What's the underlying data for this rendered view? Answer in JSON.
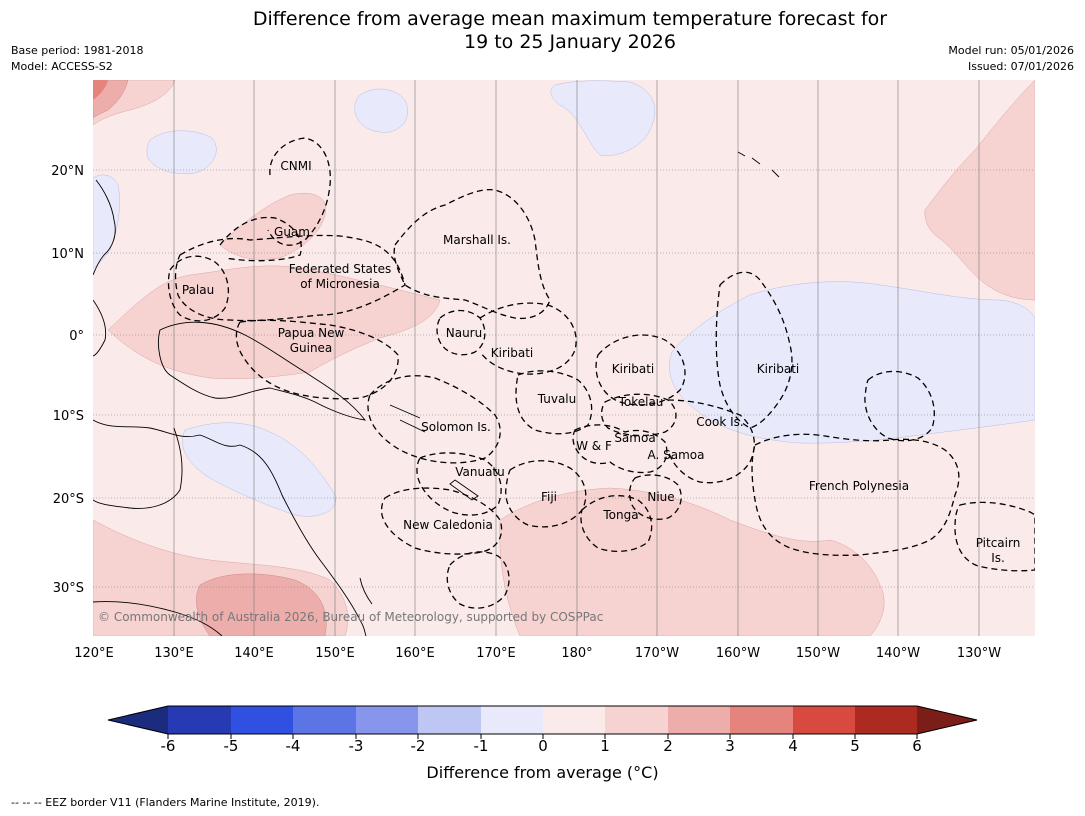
{
  "title": {
    "line1": "Difference from average mean maximum temperature forecast for",
    "line2": "19 to 25 January 2026"
  },
  "meta": {
    "base_period": "Base period: 1981-2018",
    "model": "Model: ACCESS-S2",
    "model_run": "Model run: 05/01/2026",
    "issued": "Issued: 07/01/2026"
  },
  "map": {
    "lon_labels": [
      "120°E",
      "130°E",
      "140°E",
      "150°E",
      "160°E",
      "170°E",
      "180°",
      "170°W",
      "160°W",
      "150°W",
      "140°W",
      "130°W"
    ],
    "lat_labels": [
      "20°N",
      "10°N",
      "0°",
      "10°S",
      "20°S",
      "30°S"
    ],
    "copyright": "© Commonwealth of Australia 2026, Bureau of Meteorology, supported by COSPPac",
    "regions": [
      {
        "name": "CNMI"
      },
      {
        "name": "Guam"
      },
      {
        "name": "Marshall Is."
      },
      {
        "name": "Federated States",
        "name2": "of Micronesia"
      },
      {
        "name": "Palau"
      },
      {
        "name": "Papua New",
        "name2": "Guinea"
      },
      {
        "name": "Nauru"
      },
      {
        "name": "Kiribati"
      },
      {
        "name": "Kiribati"
      },
      {
        "name": "Kiribati"
      },
      {
        "name": "Tuvalu"
      },
      {
        "name": "Tokelau"
      },
      {
        "name": "Cook Is."
      },
      {
        "name": "Solomon Is."
      },
      {
        "name": "Samoa"
      },
      {
        "name": "W & F"
      },
      {
        "name": "A. Samoa"
      },
      {
        "name": "Vanuatu"
      },
      {
        "name": "Fiji"
      },
      {
        "name": "Niue"
      },
      {
        "name": "Tonga"
      },
      {
        "name": "French Polynesia"
      },
      {
        "name": "New Caledonia"
      },
      {
        "name": "Pitcairn",
        "name2": "Is."
      }
    ]
  },
  "colorbar": {
    "ticks": [
      "-6",
      "-5",
      "-4",
      "-3",
      "-2",
      "-1",
      "0",
      "1",
      "2",
      "3",
      "4",
      "5",
      "6"
    ],
    "colors": [
      "#263ab4",
      "#2f50e0",
      "#5b74e6",
      "#8795ec",
      "#bec6f3",
      "#e8eafb",
      "#fbeaea",
      "#f6d2d1",
      "#edaeab",
      "#e5837d",
      "#d84a3f",
      "#ac2a20"
    ],
    "low_color": "#1b2c7e",
    "high_color": "#7b1e1a",
    "label": "Difference from average (°C)"
  },
  "footer": "--  --  -- EEZ border V11 (Flanders Marine Institute, 2019)."
}
